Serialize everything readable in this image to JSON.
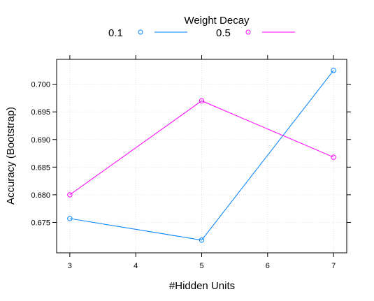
{
  "chart_data": {
    "type": "line",
    "xlabel": "#Hidden Units",
    "ylabel": "Accuracy (Bootstrap)",
    "x_ticks": [
      "3",
      "4",
      "5",
      "6",
      "7"
    ],
    "y_ticks": [
      "0.675",
      "0.680",
      "0.685",
      "0.690",
      "0.695",
      "0.700"
    ],
    "xlim": [
      2.8,
      7.2
    ],
    "ylim": [
      0.6695,
      0.7045
    ],
    "grid": true,
    "legend": {
      "title": "Weight Decay",
      "placement": "top"
    },
    "x": [
      3,
      5,
      7
    ],
    "series": [
      {
        "name": "0.1",
        "color": "#0080ff",
        "values": [
          0.6757,
          0.6718,
          0.7025
        ]
      },
      {
        "name": "0.5",
        "color": "#ff00ff",
        "values": [
          0.68,
          0.697,
          0.6868
        ]
      }
    ]
  }
}
